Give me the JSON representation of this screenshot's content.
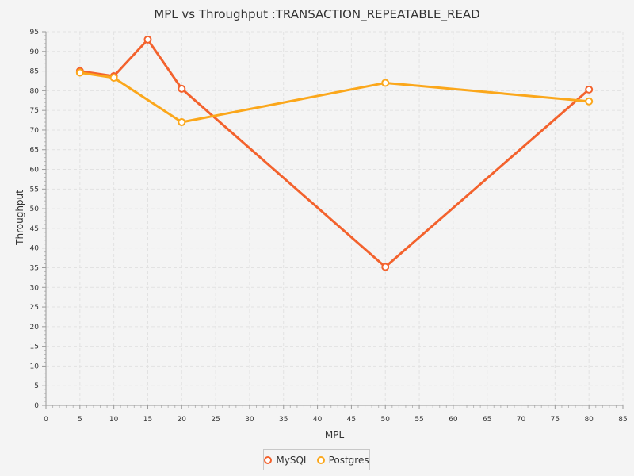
{
  "chart_data": {
    "type": "line",
    "title": "MPL vs Throughput :TRANSACTION_REPEATABLE_READ",
    "xlabel": "MPL",
    "ylabel": "Throughput",
    "xlim": [
      0,
      85
    ],
    "ylim": [
      0,
      95
    ],
    "x_major_step": 5,
    "y_major_step": 5,
    "grid": true,
    "legend_position": "bottom-center",
    "series": [
      {
        "name": "MySQL",
        "color": "#f3622d",
        "x": [
          5,
          10,
          15,
          20,
          50,
          80
        ],
        "y": [
          85,
          83.7,
          93,
          80.5,
          35.2,
          80.3
        ]
      },
      {
        "name": "Postgres",
        "color": "#fba71b",
        "x": [
          5,
          10,
          15,
          20,
          50,
          80
        ],
        "y": [
          84.6,
          83.3,
          null,
          72,
          82,
          77.3
        ]
      }
    ]
  }
}
